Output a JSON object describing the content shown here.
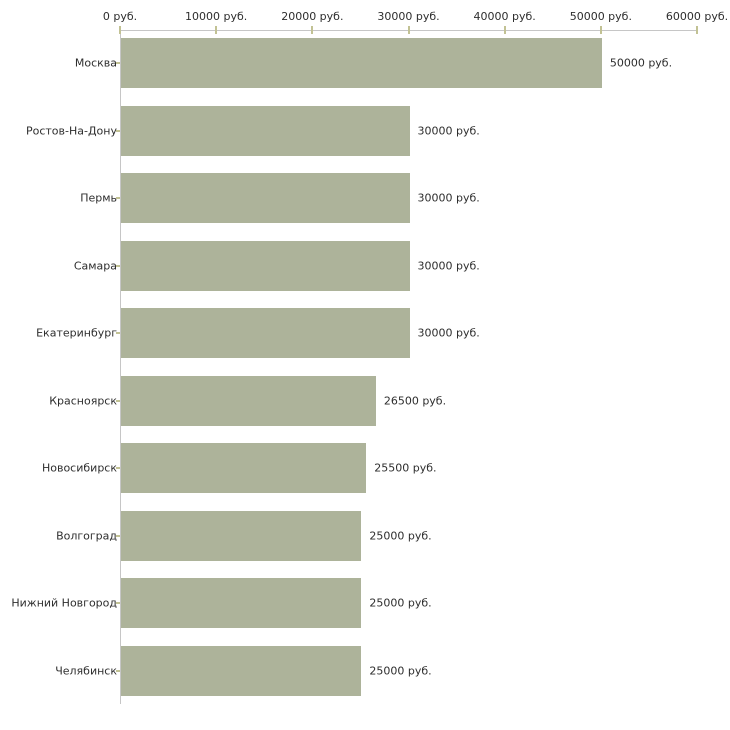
{
  "chart_data": {
    "type": "bar",
    "orientation": "horizontal",
    "title": "",
    "xlabel": "",
    "ylabel": "",
    "unit": "руб.",
    "xlim": [
      0,
      60000
    ],
    "grid": false,
    "legend": false,
    "categories": [
      "Москва",
      "Ростов-На-Дону",
      "Пермь",
      "Самара",
      "Екатеринбург",
      "Красноярск",
      "Новосибирск",
      "Волгоград",
      "Нижний Новгород",
      "Челябинск"
    ],
    "values": [
      50000,
      30000,
      30000,
      30000,
      30000,
      26500,
      25500,
      25000,
      25000,
      25000
    ],
    "value_labels": [
      "50000 руб.",
      "30000 руб.",
      "30000 руб.",
      "30000 руб.",
      "30000 руб.",
      "26500 руб.",
      "25500 руб.",
      "25000 руб.",
      "25000 руб.",
      "25000 руб."
    ],
    "x_ticks": [
      0,
      10000,
      20000,
      30000,
      40000,
      50000,
      60000
    ],
    "x_tick_labels": [
      "0 руб.",
      "10000 руб.",
      "20000 руб.",
      "30000 руб.",
      "40000 руб.",
      "50000 руб.",
      "60000 руб."
    ],
    "colors": {
      "bar": "#adb39a",
      "axis": "#c6c6c6",
      "tick": "#c2c294",
      "text": "#2e2e2e",
      "background": "#ffffff"
    }
  }
}
